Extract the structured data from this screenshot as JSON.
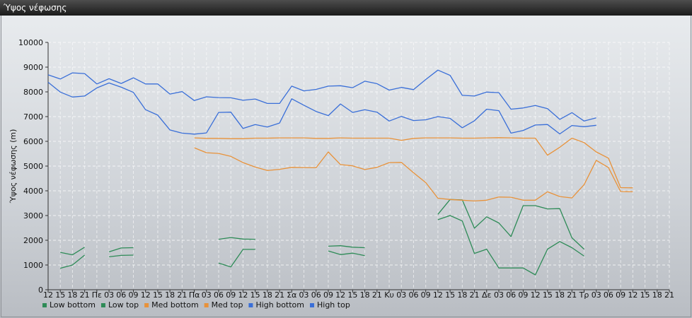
{
  "window": {
    "title": "Ύψος νέφωσης"
  },
  "chart_data": {
    "type": "line",
    "ylabel": "Ύψος νέφωσης (m)",
    "ylim": [
      0,
      10000
    ],
    "yticks": [
      0,
      1000,
      2000,
      3000,
      4000,
      5000,
      6000,
      7000,
      8000,
      9000,
      10000
    ],
    "grid": true,
    "legend_position": "bottom-left",
    "x_tick_labels": [
      "12",
      "15",
      "18",
      "21",
      "Πε",
      "03",
      "06",
      "09",
      "12",
      "15",
      "18",
      "21",
      "Πα",
      "03",
      "06",
      "09",
      "12",
      "15",
      "18",
      "21",
      "Σα",
      "03",
      "06",
      "09",
      "12",
      "15",
      "18",
      "21",
      "Κυ",
      "03",
      "06",
      "09",
      "12",
      "15",
      "18",
      "21",
      "Δε",
      "03",
      "06",
      "09",
      "12",
      "15",
      "18",
      "21",
      "Τρ",
      "03",
      "06",
      "09",
      "12",
      "15",
      "18",
      "21"
    ],
    "series": [
      {
        "name": "Low bottom",
        "color": "#2e8b57",
        "values": [
          null,
          null,
          null,
          null,
          null,
          null,
          null,
          null,
          null,
          null,
          null,
          null,
          null,
          null,
          null,
          null,
          null,
          null,
          null,
          null,
          null,
          null,
          null,
          null,
          null,
          null,
          null,
          null,
          null,
          null,
          null,
          null,
          null,
          null,
          null,
          null,
          null,
          null,
          null,
          null,
          null,
          null,
          null,
          null,
          null,
          null,
          null,
          null,
          null,
          null,
          null,
          null
        ],
        "segments": [
          [
            [
              1,
              870
            ],
            [
              2,
              1000
            ],
            [
              3,
              1400
            ]
          ],
          [
            [
              5,
              1330
            ],
            [
              6,
              1390
            ],
            [
              7,
              1400
            ]
          ],
          [
            [
              14,
              1080
            ],
            [
              15,
              920
            ],
            [
              16,
              1630
            ],
            [
              17,
              1630
            ]
          ],
          [
            [
              23,
              1570
            ],
            [
              24,
              1420
            ],
            [
              25,
              1480
            ],
            [
              26,
              1380
            ]
          ],
          [
            [
              32,
              2830
            ],
            [
              33,
              3000
            ],
            [
              34,
              2780
            ],
            [
              35,
              1470
            ],
            [
              36,
              1640
            ],
            [
              37,
              880
            ],
            [
              38,
              880
            ],
            [
              39,
              880
            ],
            [
              40,
              600
            ],
            [
              41,
              1640
            ],
            [
              42,
              1950
            ],
            [
              43,
              1700
            ],
            [
              44,
              1360
            ]
          ]
        ]
      },
      {
        "name": "Low top",
        "color": "#2e8b57",
        "segments": [
          [
            [
              1,
              1510
            ],
            [
              2,
              1410
            ],
            [
              3,
              1720
            ]
          ],
          [
            [
              5,
              1530
            ],
            [
              6,
              1690
            ],
            [
              7,
              1700
            ]
          ],
          [
            [
              14,
              2040
            ],
            [
              15,
              2110
            ],
            [
              16,
              2050
            ],
            [
              17,
              2040
            ]
          ],
          [
            [
              23,
              1760
            ],
            [
              24,
              1780
            ],
            [
              25,
              1720
            ],
            [
              26,
              1700
            ]
          ],
          [
            [
              32,
              3050
            ],
            [
              33,
              3650
            ],
            [
              34,
              3630
            ],
            [
              35,
              2490
            ],
            [
              36,
              2950
            ],
            [
              37,
              2700
            ],
            [
              38,
              2150
            ],
            [
              39,
              3400
            ],
            [
              40,
              3400
            ],
            [
              41,
              3270
            ],
            [
              42,
              3280
            ],
            [
              43,
              2100
            ],
            [
              44,
              1640
            ]
          ]
        ]
      },
      {
        "name": "Med bottom",
        "color": "#e8923a",
        "segments": [
          [
            [
              12,
              5740
            ],
            [
              13,
              5540
            ],
            [
              14,
              5510
            ],
            [
              15,
              5390
            ],
            [
              16,
              5140
            ],
            [
              17,
              4960
            ],
            [
              18,
              4820
            ],
            [
              19,
              4870
            ],
            [
              20,
              4950
            ],
            [
              21,
              4940
            ],
            [
              22,
              4930
            ],
            [
              23,
              5570
            ],
            [
              24,
              5060
            ],
            [
              25,
              5010
            ],
            [
              26,
              4860
            ],
            [
              27,
              4950
            ],
            [
              28,
              5140
            ],
            [
              29,
              5150
            ],
            [
              30,
              4730
            ],
            [
              31,
              4330
            ],
            [
              32,
              3700
            ],
            [
              33,
              3650
            ],
            [
              34,
              3620
            ],
            [
              35,
              3590
            ],
            [
              36,
              3620
            ],
            [
              37,
              3750
            ],
            [
              38,
              3740
            ],
            [
              39,
              3620
            ],
            [
              40,
              3620
            ],
            [
              41,
              3960
            ],
            [
              42,
              3770
            ],
            [
              43,
              3710
            ],
            [
              44,
              4250
            ],
            [
              45,
              5230
            ],
            [
              46,
              4940
            ],
            [
              47,
              3970
            ],
            [
              48,
              3960
            ]
          ]
        ]
      },
      {
        "name": "Med top",
        "color": "#e8923a",
        "segments": [
          [
            [
              12,
              6140
            ],
            [
              13,
              6120
            ],
            [
              14,
              6120
            ],
            [
              15,
              6110
            ],
            [
              16,
              6110
            ],
            [
              17,
              6130
            ],
            [
              18,
              6130
            ],
            [
              19,
              6140
            ],
            [
              20,
              6140
            ],
            [
              21,
              6140
            ],
            [
              22,
              6120
            ],
            [
              23,
              6120
            ],
            [
              24,
              6140
            ],
            [
              25,
              6130
            ],
            [
              26,
              6130
            ],
            [
              27,
              6130
            ],
            [
              28,
              6130
            ],
            [
              29,
              6040
            ],
            [
              30,
              6120
            ],
            [
              31,
              6140
            ],
            [
              32,
              6140
            ],
            [
              33,
              6140
            ],
            [
              34,
              6130
            ],
            [
              35,
              6130
            ],
            [
              36,
              6140
            ],
            [
              37,
              6150
            ],
            [
              38,
              6140
            ],
            [
              39,
              6130
            ],
            [
              40,
              6130
            ],
            [
              41,
              5440
            ],
            [
              42,
              5760
            ],
            [
              43,
              6130
            ],
            [
              44,
              5950
            ],
            [
              45,
              5570
            ],
            [
              46,
              5320
            ],
            [
              47,
              4130
            ],
            [
              48,
              4120
            ]
          ]
        ]
      },
      {
        "name": "High bottom",
        "color": "#3a6fd8",
        "segments": [
          [
            [
              0,
              8390
            ],
            [
              1,
              7990
            ],
            [
              2,
              7790
            ],
            [
              3,
              7830
            ],
            [
              4,
              8160
            ],
            [
              5,
              8360
            ],
            [
              6,
              8190
            ],
            [
              7,
              7980
            ],
            [
              8,
              7280
            ],
            [
              9,
              7060
            ],
            [
              10,
              6460
            ],
            [
              11,
              6330
            ],
            [
              12,
              6290
            ],
            [
              13,
              6340
            ],
            [
              14,
              7170
            ],
            [
              15,
              7180
            ],
            [
              16,
              6520
            ],
            [
              17,
              6680
            ],
            [
              18,
              6580
            ],
            [
              19,
              6740
            ],
            [
              20,
              7720
            ],
            [
              21,
              7460
            ],
            [
              22,
              7210
            ],
            [
              23,
              7040
            ],
            [
              24,
              7510
            ],
            [
              25,
              7170
            ],
            [
              26,
              7280
            ],
            [
              27,
              7180
            ],
            [
              28,
              6820
            ],
            [
              29,
              7010
            ],
            [
              30,
              6840
            ],
            [
              31,
              6870
            ],
            [
              32,
              7000
            ],
            [
              33,
              6930
            ],
            [
              34,
              6550
            ],
            [
              35,
              6830
            ],
            [
              36,
              7300
            ],
            [
              37,
              7240
            ],
            [
              38,
              6330
            ],
            [
              39,
              6440
            ],
            [
              40,
              6660
            ],
            [
              41,
              6680
            ],
            [
              42,
              6300
            ],
            [
              43,
              6640
            ],
            [
              44,
              6590
            ],
            [
              45,
              6650
            ]
          ]
        ]
      },
      {
        "name": "High top",
        "color": "#3a6fd8",
        "segments": [
          [
            [
              0,
              8690
            ],
            [
              1,
              8520
            ],
            [
              2,
              8770
            ],
            [
              3,
              8740
            ],
            [
              4,
              8320
            ],
            [
              5,
              8530
            ],
            [
              6,
              8340
            ],
            [
              7,
              8570
            ],
            [
              8,
              8320
            ],
            [
              9,
              8320
            ],
            [
              10,
              7910
            ],
            [
              11,
              8010
            ],
            [
              12,
              7650
            ],
            [
              13,
              7800
            ],
            [
              14,
              7770
            ],
            [
              15,
              7760
            ],
            [
              16,
              7660
            ],
            [
              17,
              7710
            ],
            [
              18,
              7530
            ],
            [
              19,
              7530
            ],
            [
              20,
              8230
            ],
            [
              21,
              8040
            ],
            [
              22,
              8100
            ],
            [
              23,
              8230
            ],
            [
              24,
              8250
            ],
            [
              25,
              8170
            ],
            [
              26,
              8430
            ],
            [
              27,
              8330
            ],
            [
              28,
              8070
            ],
            [
              29,
              8180
            ],
            [
              30,
              8090
            ],
            [
              31,
              8500
            ],
            [
              32,
              8880
            ],
            [
              33,
              8670
            ],
            [
              34,
              7860
            ],
            [
              35,
              7830
            ],
            [
              36,
              7990
            ],
            [
              37,
              7970
            ],
            [
              38,
              7300
            ],
            [
              39,
              7350
            ],
            [
              40,
              7450
            ],
            [
              41,
              7320
            ],
            [
              42,
              6890
            ],
            [
              43,
              7160
            ],
            [
              44,
              6820
            ],
            [
              45,
              6950
            ]
          ]
        ]
      }
    ]
  }
}
